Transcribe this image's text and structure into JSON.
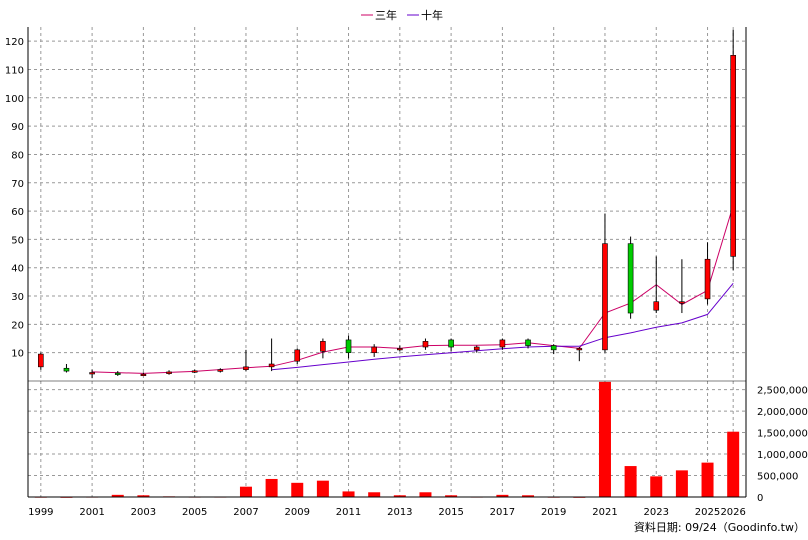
{
  "chart_data": {
    "type": "candlestick",
    "legend": [
      {
        "name": "三年",
        "color": "#cc0066"
      },
      {
        "name": "十年",
        "color": "#6600cc"
      }
    ],
    "source_text": "資料日期: 09/24（Goodinfo.tw）",
    "x_tick_labels": [
      "1999",
      "2001",
      "2003",
      "2005",
      "2007",
      "2009",
      "2011",
      "2013",
      "2015",
      "2017",
      "2019",
      "2021",
      "2023",
      "2025",
      "2026"
    ],
    "price_axis": {
      "ticks": [
        "10",
        "20",
        "30",
        "40",
        "50",
        "60",
        "70",
        "80",
        "90",
        "100",
        "110",
        "120"
      ],
      "ylim": [
        0,
        125
      ]
    },
    "volume_axis": {
      "ticks": [
        "0",
        "500,000",
        "1,000,000",
        "1,500,000",
        "2,000,000",
        "2,500,000"
      ],
      "ylim": [
        0,
        2700000
      ]
    },
    "colors": {
      "up": "#ff0000",
      "down": "#00cc00",
      "volume": "#ff0000",
      "grid": "#999999"
    },
    "candles": [
      {
        "year": 1999,
        "open": 5,
        "high": 10,
        "low": 4,
        "close": 9.5
      },
      {
        "year": 2000,
        "open": 4.5,
        "high": 6,
        "low": 3,
        "close": 3.5
      },
      {
        "year": 2001,
        "open": 2.5,
        "high": 4,
        "low": 1,
        "close": 3
      },
      {
        "year": 2002,
        "open": 2.8,
        "high": 3.5,
        "low": 1.8,
        "close": 2.5
      },
      {
        "year": 2003,
        "open": 2.2,
        "high": 3,
        "low": 1.8,
        "close": 2.4
      },
      {
        "year": 2004,
        "open": 2.6,
        "high": 3.8,
        "low": 2.2,
        "close": 3.2
      },
      {
        "year": 2005,
        "open": 3.2,
        "high": 4,
        "low": 2.8,
        "close": 3.6
      },
      {
        "year": 2006,
        "open": 3.4,
        "high": 4.5,
        "low": 3,
        "close": 4
      },
      {
        "year": 2007,
        "open": 4,
        "high": 11,
        "low": 3.5,
        "close": 5
      },
      {
        "year": 2008,
        "open": 5,
        "high": 15,
        "low": 3.5,
        "close": 6
      },
      {
        "year": 2009,
        "open": 7,
        "high": 11.5,
        "low": 6,
        "close": 11
      },
      {
        "year": 2010,
        "open": 10.5,
        "high": 15,
        "low": 8,
        "close": 14
      },
      {
        "year": 2011,
        "open": 14.5,
        "high": 16,
        "low": 8,
        "close": 10
      },
      {
        "year": 2012,
        "open": 10,
        "high": 13,
        "low": 8.5,
        "close": 12
      },
      {
        "year": 2013,
        "open": 11,
        "high": 12.5,
        "low": 10.5,
        "close": 11.5
      },
      {
        "year": 2014,
        "open": 12,
        "high": 15,
        "low": 11,
        "close": 14
      },
      {
        "year": 2015,
        "open": 14.5,
        "high": 15,
        "low": 10.5,
        "close": 12
      },
      {
        "year": 2016,
        "open": 11,
        "high": 12.5,
        "low": 10,
        "close": 12
      },
      {
        "year": 2017,
        "open": 12,
        "high": 15,
        "low": 11,
        "close": 14.5
      },
      {
        "year": 2018,
        "open": 14.5,
        "high": 15,
        "low": 11.5,
        "close": 12.5
      },
      {
        "year": 2019,
        "open": 12.5,
        "high": 13,
        "low": 9.5,
        "close": 11
      },
      {
        "year": 2020,
        "open": 11,
        "high": 12,
        "low": 7,
        "close": 11.5
      },
      {
        "year": 2021,
        "open": 11,
        "high": 59,
        "low": 10,
        "close": 48.5
      },
      {
        "year": 2022,
        "open": 48.5,
        "high": 51,
        "low": 22,
        "close": 24
      },
      {
        "year": 2023,
        "open": 25,
        "high": 44,
        "low": 24,
        "close": 28
      },
      {
        "year": 2024,
        "open": 28,
        "high": 43,
        "low": 24,
        "close": 28
      },
      {
        "year": 2025,
        "open": 29,
        "high": 49,
        "low": 27,
        "close": 43
      },
      {
        "year": 2026,
        "open": 44,
        "high": 124,
        "low": 39,
        "close": 115
      }
    ],
    "series": [
      {
        "name": "三年",
        "points": [
          [
            2001,
            3.2
          ],
          [
            2003,
            2.7
          ],
          [
            2005,
            3.4
          ],
          [
            2007,
            4.7
          ],
          [
            2008,
            5.2
          ],
          [
            2009,
            7.3
          ],
          [
            2010,
            10.2
          ],
          [
            2011,
            12
          ],
          [
            2012,
            12
          ],
          [
            2013,
            11.5
          ],
          [
            2014,
            12.5
          ],
          [
            2015,
            12.6
          ],
          [
            2016,
            12.6
          ],
          [
            2017,
            12.8
          ],
          [
            2018,
            13.5
          ],
          [
            2019,
            12.5
          ],
          [
            2020,
            11.5
          ],
          [
            2021,
            24
          ],
          [
            2022,
            27.5
          ],
          [
            2023,
            34
          ],
          [
            2024,
            27
          ],
          [
            2025,
            32
          ],
          [
            2026,
            62
          ]
        ]
      },
      {
        "name": "十年",
        "points": [
          [
            2008,
            4
          ],
          [
            2009,
            4.8
          ],
          [
            2010,
            5.8
          ],
          [
            2011,
            6.7
          ],
          [
            2012,
            7.7
          ],
          [
            2013,
            8.5
          ],
          [
            2014,
            9.3
          ],
          [
            2015,
            10
          ],
          [
            2016,
            10.7
          ],
          [
            2017,
            11.4
          ],
          [
            2018,
            12
          ],
          [
            2019,
            12.3
          ],
          [
            2020,
            12.3
          ],
          [
            2021,
            15.3
          ],
          [
            2022,
            17
          ],
          [
            2023,
            19
          ],
          [
            2024,
            20.5
          ],
          [
            2025,
            23.5
          ],
          [
            2026,
            34.5
          ]
        ]
      }
    ],
    "volume": [
      {
        "year": 1999,
        "value": 8000
      },
      {
        "year": 2000,
        "value": 5000
      },
      {
        "year": 2001,
        "value": 10000
      },
      {
        "year": 2002,
        "value": 50000
      },
      {
        "year": 2003,
        "value": 40000
      },
      {
        "year": 2004,
        "value": 15000
      },
      {
        "year": 2005,
        "value": 10000
      },
      {
        "year": 2006,
        "value": 10000
      },
      {
        "year": 2007,
        "value": 240000
      },
      {
        "year": 2008,
        "value": 420000
      },
      {
        "year": 2009,
        "value": 330000
      },
      {
        "year": 2010,
        "value": 380000
      },
      {
        "year": 2011,
        "value": 130000
      },
      {
        "year": 2012,
        "value": 110000
      },
      {
        "year": 2013,
        "value": 40000
      },
      {
        "year": 2014,
        "value": 110000
      },
      {
        "year": 2015,
        "value": 40000
      },
      {
        "year": 2016,
        "value": 10000
      },
      {
        "year": 2017,
        "value": 50000
      },
      {
        "year": 2018,
        "value": 40000
      },
      {
        "year": 2019,
        "value": 8000
      },
      {
        "year": 2020,
        "value": 5000
      },
      {
        "year": 2021,
        "value": 2680000
      },
      {
        "year": 2022,
        "value": 720000
      },
      {
        "year": 2023,
        "value": 480000
      },
      {
        "year": 2024,
        "value": 620000
      },
      {
        "year": 2025,
        "value": 800000
      },
      {
        "year": 2026,
        "value": 1520000
      }
    ]
  }
}
